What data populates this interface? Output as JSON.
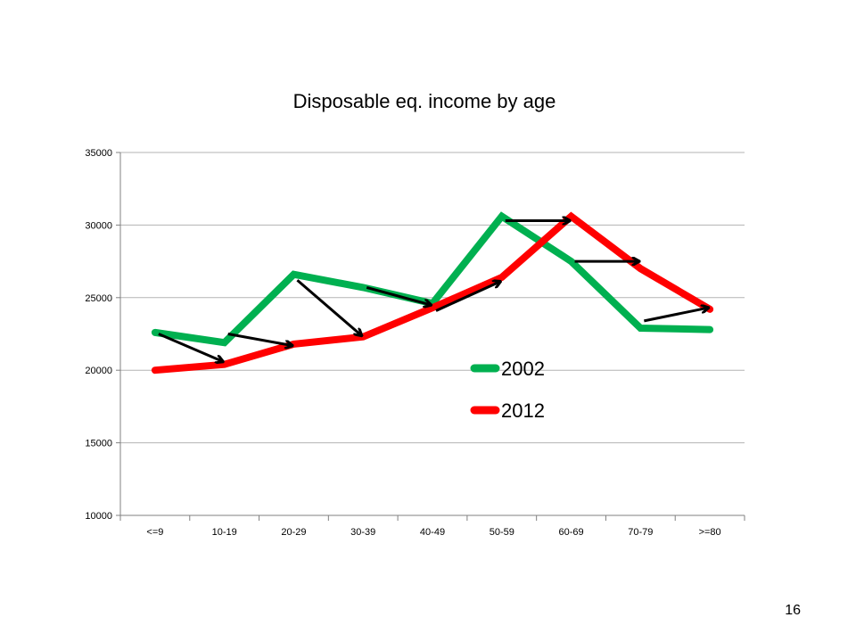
{
  "page_number": "16",
  "chart_data": {
    "type": "line",
    "title": "Disposable eq. income by age",
    "xlabel": "",
    "ylabel": "",
    "categories": [
      "<=9",
      "10-19",
      "20-29",
      "30-39",
      "40-49",
      "50-59",
      "60-69",
      "70-79",
      ">=80"
    ],
    "ylim": [
      10000,
      35000
    ],
    "yticks": [
      "10000",
      "15000",
      "20000",
      "25000",
      "30000",
      "35000"
    ],
    "grid": "horizontal",
    "legend": "center-right",
    "series": [
      {
        "name": "2002",
        "color": "#00b050",
        "values": [
          22600,
          21900,
          26600,
          25700,
          24600,
          30600,
          27500,
          22900,
          22800
        ]
      },
      {
        "name": "2012",
        "color": "#ff0000",
        "values": [
          20000,
          20400,
          21800,
          22300,
          24300,
          26400,
          30600,
          27000,
          24200
        ]
      }
    ],
    "annotations": {
      "arrow_color": "#000000",
      "arrows": [
        {
          "from": [
            0,
            22500
          ],
          "to": [
            1,
            20600
          ]
        },
        {
          "from": [
            1,
            22500
          ],
          "to": [
            2,
            21700
          ]
        },
        {
          "from": [
            2,
            26200
          ],
          "to": [
            3,
            22400
          ]
        },
        {
          "from": [
            3,
            25700
          ],
          "to": [
            4,
            24500
          ]
        },
        {
          "from": [
            4,
            24100
          ],
          "to": [
            5,
            26100
          ]
        },
        {
          "from": [
            5,
            30300
          ],
          "to": [
            6,
            30300
          ]
        },
        {
          "from": [
            6,
            27500
          ],
          "to": [
            7,
            27500
          ]
        },
        {
          "from": [
            7,
            23400
          ],
          "to": [
            8,
            24300
          ]
        }
      ]
    }
  }
}
